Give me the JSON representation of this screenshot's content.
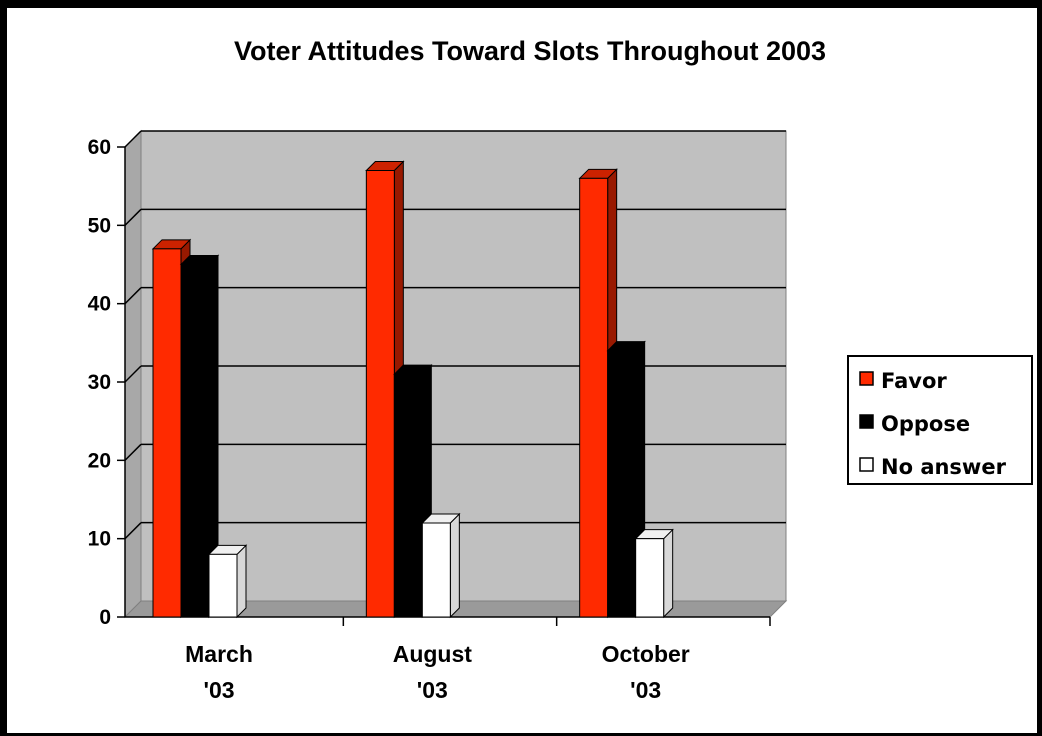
{
  "chart_data": {
    "type": "bar",
    "title": "Voter Attitudes Toward Slots Throughout 2003",
    "categories": [
      [
        "March",
        "'03"
      ],
      [
        "August",
        "'03"
      ],
      [
        "October",
        "'03"
      ]
    ],
    "series": [
      {
        "name": "Favor",
        "values": [
          47,
          57,
          56
        ],
        "color": "#ff2a00"
      },
      {
        "name": "Oppose",
        "values": [
          45,
          31,
          34
        ],
        "color": "#000000"
      },
      {
        "name": "No answer",
        "values": [
          8,
          12,
          10
        ],
        "color": "#ffffff"
      }
    ],
    "ylim": [
      0,
      60
    ],
    "yticks": [
      "0",
      "10",
      "20",
      "30",
      "40",
      "50",
      "60"
    ],
    "legend_position": "right",
    "grid": true,
    "colors": {
      "wall": "#c0c0c0",
      "floor": "#9a9a9a",
      "side_wall": "#a8a8a8"
    }
  }
}
